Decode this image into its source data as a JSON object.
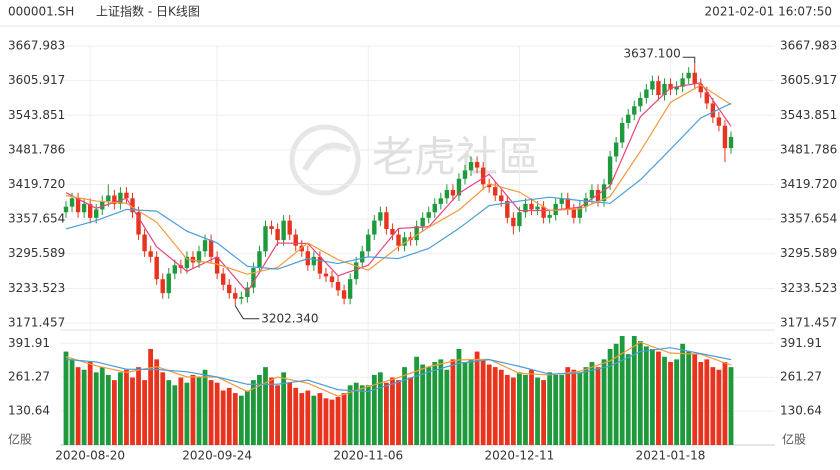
{
  "chart_data": {
    "type": "candlestick",
    "symbol": "000001.SH",
    "title": "上证指数 - 日K线图",
    "timestamp": "2021-02-01 16:07:50",
    "watermark": "老虎社區",
    "categories": [
      null,
      null,
      null,
      null,
      "2020-08-20",
      null,
      null,
      null,
      null,
      null,
      null,
      null,
      null,
      null,
      null,
      null,
      null,
      null,
      null,
      null,
      null,
      null,
      null,
      null,
      null,
      "2020-09-24",
      null,
      null,
      null,
      null,
      null,
      null,
      null,
      null,
      null,
      null,
      null,
      null,
      null,
      null,
      null,
      null,
      null,
      null,
      null,
      null,
      null,
      null,
      null,
      null,
      "2020-11-06",
      null,
      null,
      null,
      null,
      null,
      null,
      null,
      null,
      null,
      null,
      null,
      null,
      null,
      null,
      null,
      null,
      null,
      null,
      null,
      null,
      null,
      null,
      null,
      null,
      "2020-12-11",
      null,
      null,
      null,
      null,
      null,
      null,
      null,
      null,
      null,
      null,
      null,
      null,
      null,
      null,
      null,
      null,
      null,
      null,
      null,
      null,
      null,
      null,
      null,
      null,
      "2021-01-18",
      null,
      null,
      null,
      null,
      null,
      null,
      null,
      null,
      null,
      null
    ],
    "open": [
      3370,
      3380,
      3395,
      3370,
      3385,
      3360,
      3375,
      3390,
      3400,
      3385,
      3405,
      3395,
      3370,
      3330,
      3300,
      3290,
      3250,
      3225,
      3260,
      3275,
      3270,
      3290,
      3280,
      3300,
      3320,
      3290,
      3260,
      3240,
      3225,
      3215,
      3218,
      3235,
      3270,
      3300,
      3345,
      3340,
      3320,
      3355,
      3330,
      3310,
      3300,
      3275,
      3290,
      3260,
      3255,
      3245,
      3230,
      3215,
      3250,
      3280,
      3300,
      3330,
      3355,
      3370,
      3340,
      3330,
      3310,
      3325,
      3320,
      3345,
      3360,
      3370,
      3385,
      3395,
      3410,
      3400,
      3430,
      3445,
      3460,
      3450,
      3420,
      3415,
      3400,
      3390,
      3360,
      3345,
      3370,
      3385,
      3375,
      3380,
      3360,
      3365,
      3385,
      3395,
      3375,
      3360,
      3380,
      3395,
      3410,
      3390,
      3420,
      3470,
      3495,
      3530,
      3545,
      3560,
      3575,
      3590,
      3605,
      3580,
      3600,
      3590,
      3595,
      3610,
      3620,
      3600,
      3585,
      3565,
      3540,
      3525,
      3485
    ],
    "high": [
      3390,
      3405,
      3405,
      3395,
      3395,
      3385,
      3400,
      3420,
      3410,
      3415,
      3415,
      3405,
      3380,
      3340,
      3310,
      3300,
      3260,
      3270,
      3285,
      3285,
      3300,
      3300,
      3310,
      3330,
      3330,
      3300,
      3270,
      3250,
      3235,
      3228,
      3245,
      3280,
      3310,
      3355,
      3355,
      3350,
      3365,
      3365,
      3340,
      3320,
      3310,
      3300,
      3300,
      3270,
      3265,
      3255,
      3240,
      3260,
      3290,
      3310,
      3340,
      3365,
      3380,
      3380,
      3350,
      3340,
      3335,
      3335,
      3355,
      3370,
      3380,
      3395,
      3405,
      3420,
      3420,
      3440,
      3455,
      3470,
      3470,
      3460,
      3430,
      3425,
      3410,
      3400,
      3370,
      3380,
      3395,
      3395,
      3390,
      3390,
      3375,
      3395,
      3405,
      3405,
      3385,
      3390,
      3405,
      3420,
      3420,
      3430,
      3480,
      3505,
      3540,
      3555,
      3570,
      3585,
      3600,
      3615,
      3615,
      3610,
      3610,
      3605,
      3620,
      3630,
      3637.1,
      3610,
      3595,
      3575,
      3550,
      3535,
      3515
    ],
    "low": [
      3360,
      3370,
      3360,
      3360,
      3350,
      3350,
      3365,
      3380,
      3375,
      3375,
      3385,
      3360,
      3320,
      3290,
      3280,
      3240,
      3215,
      3215,
      3250,
      3260,
      3260,
      3270,
      3270,
      3290,
      3280,
      3250,
      3230,
      3215,
      3202.34,
      3205,
      3208,
      3225,
      3260,
      3290,
      3330,
      3310,
      3310,
      3320,
      3300,
      3290,
      3265,
      3265,
      3250,
      3245,
      3235,
      3220,
      3205,
      3205,
      3240,
      3270,
      3290,
      3320,
      3345,
      3330,
      3320,
      3300,
      3300,
      3310,
      3310,
      3335,
      3350,
      3360,
      3375,
      3385,
      3390,
      3390,
      3420,
      3435,
      3440,
      3410,
      3405,
      3390,
      3380,
      3350,
      3330,
      3335,
      3360,
      3365,
      3365,
      3350,
      3350,
      3355,
      3375,
      3365,
      3350,
      3350,
      3370,
      3385,
      3380,
      3380,
      3410,
      3460,
      3485,
      3520,
      3535,
      3550,
      3565,
      3580,
      3570,
      3570,
      3580,
      3580,
      3585,
      3600,
      3590,
      3575,
      3555,
      3530,
      3515,
      3460,
      3475
    ],
    "close": [
      3380,
      3395,
      3370,
      3385,
      3360,
      3375,
      3390,
      3400,
      3385,
      3405,
      3395,
      3370,
      3330,
      3300,
      3290,
      3250,
      3225,
      3260,
      3275,
      3270,
      3290,
      3280,
      3300,
      3320,
      3290,
      3260,
      3240,
      3225,
      3215,
      3218,
      3235,
      3270,
      3300,
      3345,
      3340,
      3320,
      3355,
      3330,
      3310,
      3300,
      3275,
      3290,
      3260,
      3255,
      3245,
      3230,
      3215,
      3250,
      3280,
      3300,
      3330,
      3355,
      3370,
      3340,
      3330,
      3310,
      3325,
      3320,
      3345,
      3360,
      3370,
      3385,
      3395,
      3410,
      3400,
      3430,
      3445,
      3460,
      3450,
      3420,
      3415,
      3400,
      3390,
      3360,
      3345,
      3370,
      3385,
      3375,
      3380,
      3360,
      3365,
      3385,
      3395,
      3375,
      3360,
      3380,
      3395,
      3410,
      3390,
      3420,
      3470,
      3495,
      3530,
      3545,
      3560,
      3575,
      3590,
      3605,
      3580,
      3600,
      3590,
      3595,
      3610,
      3620,
      3600,
      3585,
      3565,
      3540,
      3525,
      3485,
      3505
    ],
    "up_color": "#1e9a3c",
    "down_color": "#e8331f",
    "ylim": [
      3171.457,
      3667.983
    ],
    "yticks": [
      3171.457,
      3233.523,
      3295.589,
      3357.654,
      {
        "value": 3419.72,
        "label": "3419.720"
      },
      3481.786,
      3543.851,
      3605.917,
      3667.983
    ],
    "grid": true,
    "max_label": "3637.100",
    "min_label": "3202.340",
    "ma_lines": [
      {
        "color": "#e8457a",
        "x": [
          0,
          5,
          10,
          15,
          20,
          25,
          30,
          35,
          40,
          45,
          50,
          55,
          60,
          65,
          70,
          75,
          80,
          85,
          90,
          95,
          100,
          105,
          110
        ],
        "values": [
          3405,
          3377,
          3395,
          3308,
          3264,
          3290,
          3227,
          3315,
          3314,
          3256,
          3275,
          3341,
          3344,
          3404,
          3438,
          3373,
          3373,
          3379,
          3417,
          3541,
          3593,
          3602,
          3524
        ]
      },
      {
        "color": "#f39a3c",
        "x": [
          0,
          5,
          10,
          15,
          20,
          25,
          30,
          35,
          40,
          45,
          50,
          55,
          60,
          65,
          70,
          75,
          80,
          85,
          90,
          95,
          100,
          105,
          110
        ],
        "values": [
          3400,
          3390,
          3386,
          3352,
          3286,
          3277,
          3259,
          3271,
          3315,
          3285,
          3266,
          3308,
          3343,
          3374,
          3421,
          3406,
          3373,
          3376,
          3398,
          3479,
          3567,
          3598,
          3563
        ]
      },
      {
        "color": "#4a9ed8",
        "x": [
          0,
          5,
          10,
          15,
          20,
          25,
          30,
          35,
          40,
          45,
          50,
          55,
          60,
          65,
          70,
          75,
          80,
          85,
          90,
          95,
          100,
          105,
          110
        ],
        "values": [
          3340,
          3355,
          3375,
          3372,
          3336,
          3315,
          3273,
          3268,
          3287,
          3278,
          3290,
          3287,
          3305,
          3341,
          3382,
          3390,
          3397,
          3391,
          3386,
          3428,
          3483,
          3539,
          3565
        ]
      }
    ],
    "volume": {
      "unit": "亿股",
      "values": [
        360,
        330,
        300,
        290,
        320,
        280,
        300,
        270,
        250,
        280,
        290,
        260,
        300,
        250,
        370,
        330,
        280,
        250,
        230,
        260,
        240,
        270,
        260,
        290,
        250,
        240,
        210,
        220,
        200,
        190,
        210,
        250,
        270,
        300,
        260,
        230,
        280,
        240,
        220,
        200,
        210,
        190,
        200,
        180,
        175,
        185,
        200,
        230,
        240,
        230,
        230,
        270,
        280,
        240,
        260,
        250,
        300,
        260,
        340,
        310,
        300,
        320,
        330,
        290,
        330,
        370,
        320,
        330,
        360,
        330,
        310,
        300,
        290,
        270,
        260,
        280,
        270,
        290,
        260,
        250,
        280,
        270,
        270,
        300,
        290,
        280,
        300,
        320,
        300,
        330,
        370,
        390,
        420,
        350,
        420,
        400,
        380,
        370,
        360,
        340,
        320,
        330,
        390,
        360,
        350,
        320,
        330,
        300,
        290,
        320,
        300
      ],
      "ylim": [
        0,
        420
      ],
      "yticks": [
        391.91,
        261.27,
        130.64
      ],
      "ma_lines": [
        {
          "color": "#f39a3c",
          "x": [
            0,
            5,
            10,
            15,
            20,
            25,
            30,
            35,
            40,
            45,
            50,
            55,
            60,
            65,
            70,
            75,
            80,
            85,
            90,
            95,
            100,
            105,
            110
          ],
          "values": [
            340,
            305,
            280,
            302,
            262,
            262,
            206,
            262,
            238,
            188,
            225,
            260,
            302,
            328,
            330,
            276,
            270,
            284,
            324,
            396,
            354,
            350,
            308
          ]
        },
        {
          "color": "#4a9ed8",
          "x": [
            0,
            5,
            10,
            15,
            20,
            25,
            30,
            35,
            40,
            45,
            50,
            55,
            60,
            65,
            70,
            75,
            80,
            85,
            90,
            95,
            100,
            105,
            110
          ],
          "values": [
            330,
            320,
            292,
            291,
            282,
            262,
            234,
            234,
            250,
            213,
            206,
            243,
            281,
            315,
            329,
            303,
            273,
            277,
            304,
            360,
            375,
            352,
            329
          ]
        }
      ]
    }
  }
}
